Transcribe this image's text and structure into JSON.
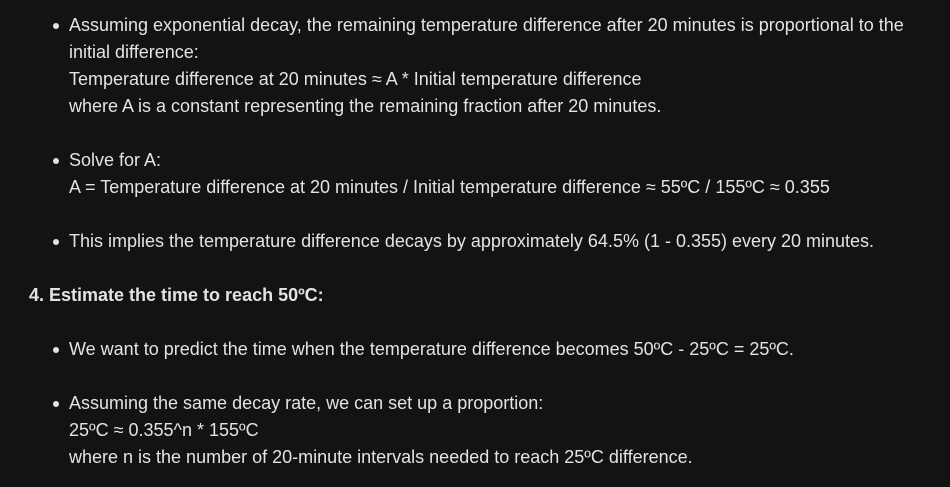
{
  "steps": {
    "b1": {
      "lines": [
        "Assuming exponential decay, the remaining temperature difference after 20 minutes is proportional to the",
        "initial difference:",
        "Temperature difference at 20 minutes ≈ A * Initial temperature difference",
        "where A is a constant representing the remaining fraction after 20 minutes."
      ]
    },
    "b2": {
      "lines": [
        "Solve for A:",
        "A = Temperature difference at 20 minutes / Initial temperature difference ≈ 55ºC / 155ºC ≈ 0.355"
      ]
    },
    "b3": {
      "lines": [
        "This implies the temperature difference decays by approximately 64.5% (1 - 0.355) every 20 minutes."
      ]
    },
    "heading4": "4. Estimate the time to reach 50ºC:",
    "b4": {
      "lines": [
        "We want to predict the time when the temperature difference becomes 50ºC - 25ºC = 25ºC."
      ]
    },
    "b5": {
      "lines": [
        "Assuming the same decay rate, we can set up a proportion:",
        "25ºC ≈ 0.355^n * 155ºC",
        "where n is the number of 20-minute intervals needed to reach 25ºC difference."
      ]
    }
  }
}
